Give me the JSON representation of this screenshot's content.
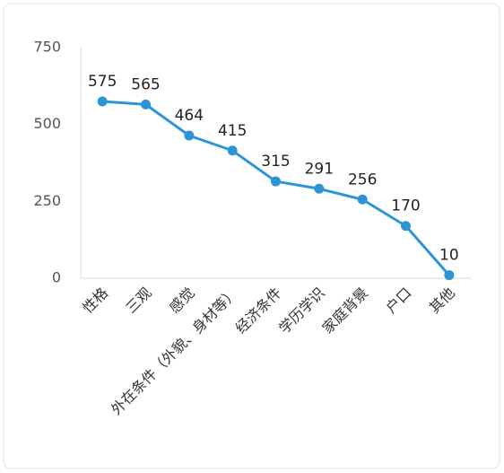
{
  "chart_data": {
    "type": "line",
    "categories": [
      "性格",
      "三观",
      "感觉",
      "外在条件（外貌、身材等）",
      "经济条件",
      "学历学识",
      "家庭背景",
      "户口",
      "其他"
    ],
    "values": [
      575,
      565,
      464,
      415,
      315,
      291,
      256,
      170,
      10
    ],
    "color": "#2b95d6",
    "ylim": [
      0,
      750
    ],
    "yticks": [
      0,
      250,
      500,
      750
    ],
    "grid": false
  }
}
